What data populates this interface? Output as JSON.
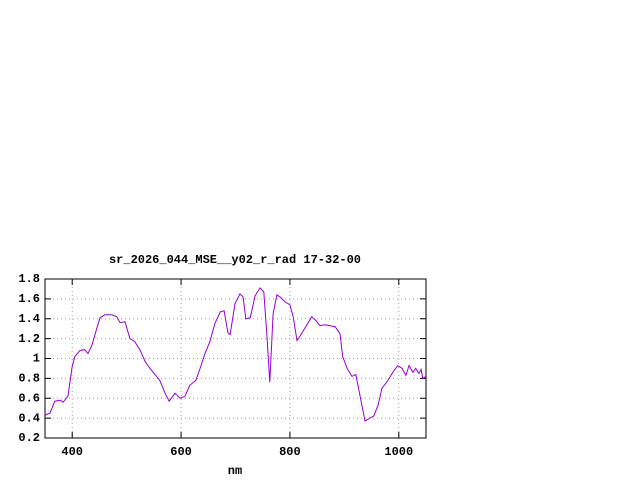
{
  "chart_data": {
    "type": "line",
    "title": "sr_2026_044_MSE__y02_r_rad 17-32-00",
    "x_label": "nm",
    "x": [
      350,
      359,
      368,
      378,
      383,
      392,
      400,
      405,
      414,
      423,
      429,
      436,
      446,
      451,
      460,
      473,
      482,
      488,
      497,
      506,
      515,
      525,
      534,
      543,
      552,
      561,
      570,
      578,
      589,
      598,
      607,
      616,
      627,
      635,
      644,
      653,
      662,
      672,
      679,
      686,
      690,
      699,
      708,
      714,
      719,
      727,
      736,
      745,
      752,
      758,
      763,
      769,
      776,
      782,
      791,
      800,
      806,
      813,
      818,
      829,
      840,
      848,
      855,
      864,
      874,
      883,
      892,
      897,
      905,
      914,
      921,
      929,
      938,
      947,
      954,
      962,
      969,
      980,
      989,
      998,
      1006,
      1013,
      1019,
      1026,
      1031,
      1037,
      1041,
      1044,
      1050
    ],
    "series": [
      {
        "color": "#9400d3",
        "values": [
          0.43,
          0.45,
          0.57,
          0.58,
          0.56,
          0.62,
          0.92,
          1.02,
          1.08,
          1.09,
          1.05,
          1.13,
          1.32,
          1.41,
          1.44,
          1.44,
          1.42,
          1.36,
          1.37,
          1.2,
          1.17,
          1.08,
          0.97,
          0.9,
          0.84,
          0.78,
          0.66,
          0.57,
          0.65,
          0.6,
          0.62,
          0.73,
          0.78,
          0.9,
          1.05,
          1.17,
          1.35,
          1.47,
          1.48,
          1.26,
          1.24,
          1.55,
          1.65,
          1.62,
          1.4,
          1.41,
          1.63,
          1.71,
          1.67,
          1.2,
          0.76,
          1.45,
          1.64,
          1.62,
          1.57,
          1.54,
          1.42,
          1.18,
          1.22,
          1.32,
          1.42,
          1.38,
          1.33,
          1.34,
          1.33,
          1.32,
          1.25,
          1.02,
          0.9,
          0.82,
          0.84,
          0.62,
          0.37,
          0.4,
          0.42,
          0.53,
          0.7,
          0.78,
          0.86,
          0.93,
          0.9,
          0.83,
          0.93,
          0.86,
          0.9,
          0.85,
          0.89,
          0.8,
          0.82
        ]
      }
    ],
    "xlim": [
      350,
      1050
    ],
    "xticks": [
      400,
      600,
      800,
      1000
    ],
    "ylim": [
      0.2,
      1.8
    ],
    "yticks": [
      0.2,
      0.4,
      0.6,
      0.8,
      1,
      1.2,
      1.4,
      1.6,
      1.8
    ],
    "grid": true
  }
}
